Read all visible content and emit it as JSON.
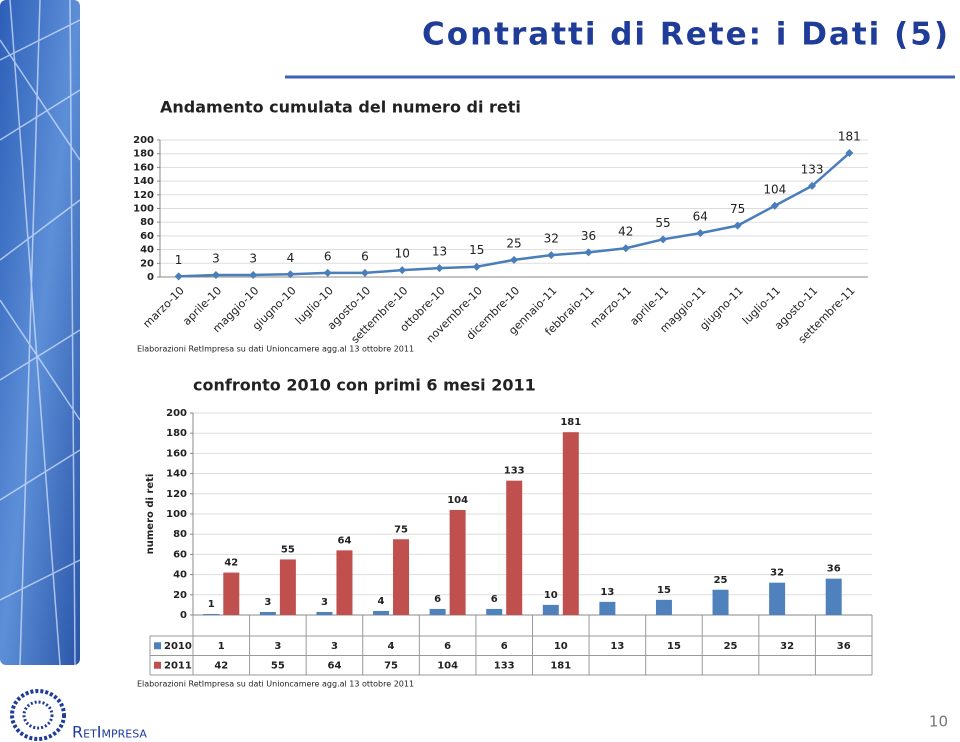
{
  "title": "Contratti di Rete: i Dati (5)",
  "page_number": "10",
  "logo_text": "RetImpresa",
  "chart_data": [
    {
      "type": "line",
      "title": "Andamento cumulata del numero di reti",
      "categories": [
        "marzo-10",
        "aprile-10",
        "maggio-10",
        "giugno-10",
        "luglio-10",
        "agosto-10",
        "settembre-10",
        "ottobre-10",
        "novembre-10",
        "dicembre-10",
        "gennaio-11",
        "febbraio-11",
        "marzo-11",
        "aprile-11",
        "maggio-11",
        "giugno-11",
        "luglio-11",
        "agosto-11",
        "settembre-11"
      ],
      "values": [
        1,
        3,
        3,
        4,
        6,
        6,
        10,
        13,
        15,
        25,
        32,
        36,
        42,
        55,
        64,
        75,
        104,
        133,
        181
      ],
      "color": "#4a7ebb",
      "ylim": [
        0,
        200
      ],
      "yticks": [
        0,
        20,
        40,
        60,
        80,
        100,
        120,
        140,
        160,
        180,
        200
      ],
      "grid": true,
      "note": "Elaborazioni RetImpresa su dati Unioncamere agg.al 13 ottobre 2011"
    },
    {
      "type": "bar",
      "title": "confronto 2010 con primi 6 mesi 2011",
      "y_label": "numero di reti",
      "categories": [
        null,
        null,
        null,
        null,
        null,
        null,
        null,
        null,
        null,
        null,
        null,
        null
      ],
      "series": [
        {
          "name": "2010",
          "color": "#4f81bd",
          "values": [
            1,
            3,
            3,
            4,
            6,
            6,
            10,
            13,
            15,
            25,
            32,
            36
          ]
        },
        {
          "name": "2011",
          "color": "#c0504d",
          "values": [
            42,
            55,
            64,
            75,
            104,
            133,
            181,
            null,
            null,
            null,
            null,
            null
          ]
        }
      ],
      "ylim": [
        0,
        200
      ],
      "yticks": [
        0,
        20,
        40,
        60,
        80,
        100,
        120,
        140,
        160,
        180,
        200
      ],
      "grid": true,
      "note": "Elaborazioni RetImpresa su dati Unioncamere agg.al 13 ottobre 2011"
    }
  ]
}
